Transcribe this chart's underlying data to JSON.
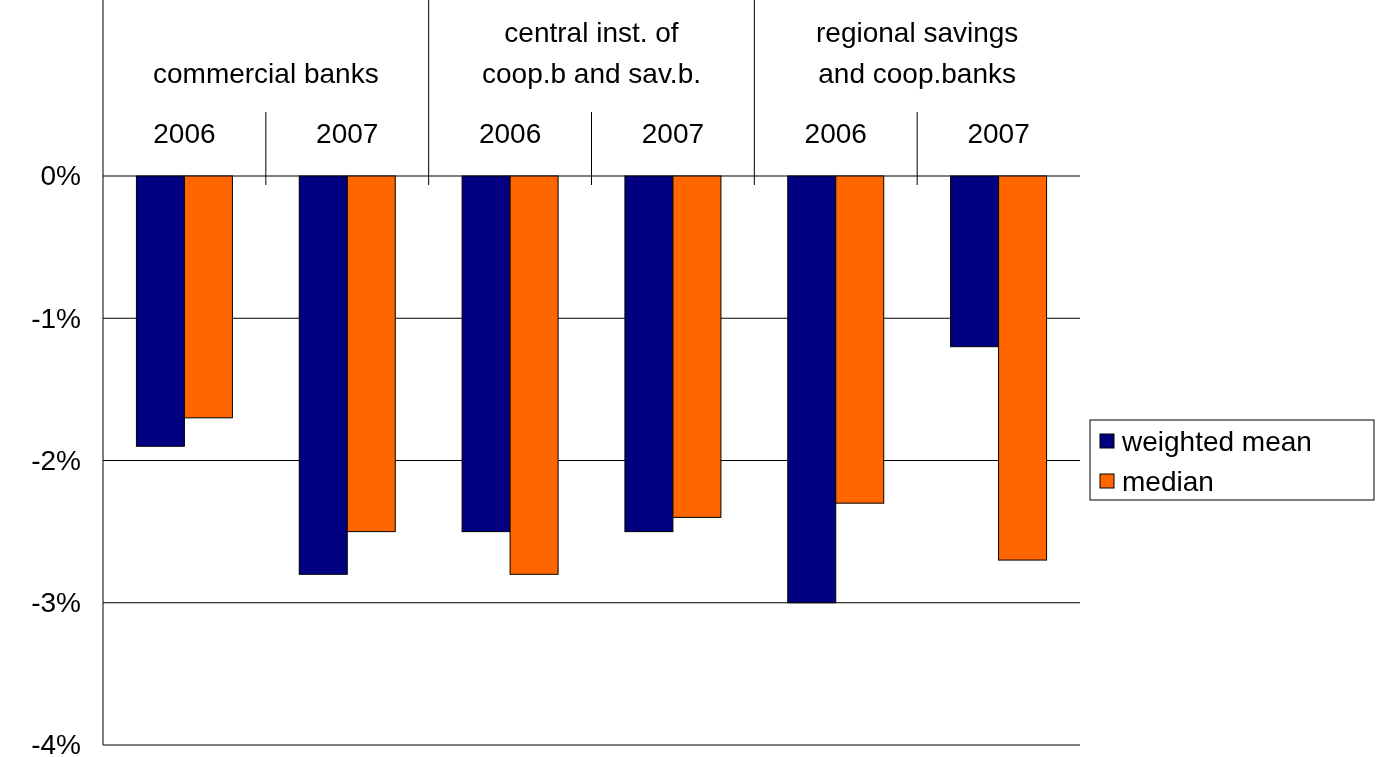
{
  "chart_data": {
    "type": "bar",
    "categories": [
      "2006",
      "2007",
      "2006",
      "2007",
      "2006",
      "2007"
    ],
    "annotations": [
      "commercial banks",
      "central inst. of coop.b and sav.b.",
      "regional savings and coop.banks"
    ],
    "series": [
      {
        "name": "weighted mean",
        "color": "#000080",
        "values": [
          -1.9,
          -2.8,
          -2.5,
          -2.5,
          -3.0,
          -1.2
        ]
      },
      {
        "name": "median",
        "color": "#ff6600",
        "values": [
          -1.7,
          -2.5,
          -2.8,
          -2.4,
          -2.3,
          -2.7
        ]
      }
    ],
    "ylim": [
      -4,
      0
    ],
    "yticks": [
      {
        "value": 0,
        "label": "0%"
      },
      {
        "value": -1,
        "label": "-1%"
      },
      {
        "value": -2,
        "label": "-2%"
      },
      {
        "value": -3,
        "label": "-3%"
      },
      {
        "value": -4,
        "label": "-4%"
      }
    ],
    "grid": "y",
    "legend": "right"
  }
}
